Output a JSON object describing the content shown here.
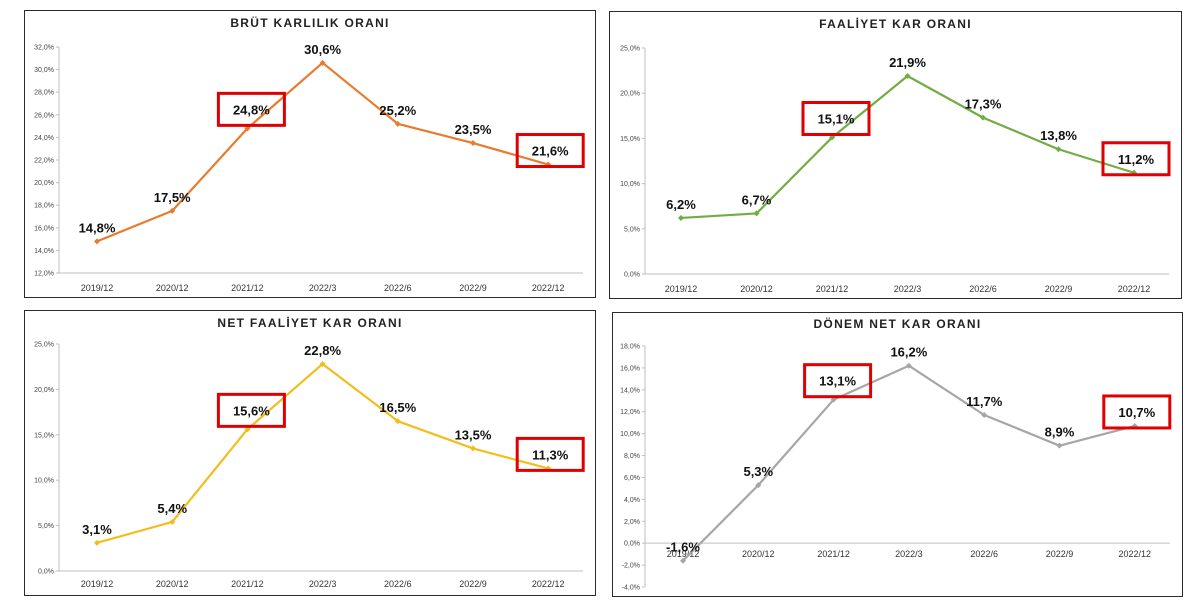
{
  "chart_data": [
    {
      "type": "line",
      "title": "BRÜT KARLILIK ORANI",
      "color": "#E87B2E",
      "categories": [
        "2019/12",
        "2020/12",
        "2021/12",
        "2022/3",
        "2022/6",
        "2022/9",
        "2022/12"
      ],
      "values": [
        14.8,
        17.5,
        24.8,
        30.6,
        25.2,
        23.5,
        21.6
      ],
      "data_labels": [
        "14,8%",
        "17,5%",
        "24,8%",
        "30,6%",
        "25,2%",
        "23,5%",
        "21,6%"
      ],
      "highlighted": [
        2,
        6
      ],
      "ylim": [
        12,
        32
      ],
      "yticks": [
        "12,0%",
        "14,0%",
        "16,0%",
        "18,0%",
        "20,0%",
        "22,0%",
        "24,0%",
        "26,0%",
        "28,0%",
        "30,0%",
        "32,0%"
      ],
      "grid": false,
      "legend": "none"
    },
    {
      "type": "line",
      "title": "FAALİYET KAR ORANI",
      "color": "#72AD43",
      "categories": [
        "2019/12",
        "2020/12",
        "2021/12",
        "2022/3",
        "2022/6",
        "2022/9",
        "2022/12"
      ],
      "values": [
        6.2,
        6.7,
        15.1,
        21.9,
        17.3,
        13.8,
        11.2
      ],
      "data_labels": [
        "6,2%",
        "6,7%",
        "15,1%",
        "21,9%",
        "17,3%",
        "13,8%",
        "11,2%"
      ],
      "highlighted": [
        2,
        6
      ],
      "ylim": [
        0,
        25
      ],
      "yticks": [
        "0,0%",
        "5,0%",
        "10,0%",
        "15,0%",
        "20,0%",
        "25,0%"
      ],
      "grid": false,
      "legend": "none"
    },
    {
      "type": "line",
      "title": "NET FAALİYET KAR ORANI",
      "color": "#F2BE1E",
      "categories": [
        "2019/12",
        "2020/12",
        "2021/12",
        "2022/3",
        "2022/6",
        "2022/9",
        "2022/12"
      ],
      "values": [
        3.1,
        5.4,
        15.6,
        22.8,
        16.5,
        13.5,
        11.3
      ],
      "data_labels": [
        "3,1%",
        "5,4%",
        "15,6%",
        "22,8%",
        "16,5%",
        "13,5%",
        "11,3%"
      ],
      "highlighted": [
        2,
        6
      ],
      "ylim": [
        0,
        25
      ],
      "yticks": [
        "0,0%",
        "5,0%",
        "10,0%",
        "15,0%",
        "20,0%",
        "25,0%"
      ],
      "grid": false,
      "legend": "none"
    },
    {
      "type": "line",
      "title": "DÖNEM NET KAR ORANI",
      "color": "#A6A6A6",
      "categories": [
        "2019/12",
        "2020/12",
        "2021/12",
        "2022/3",
        "2022/6",
        "2022/9",
        "2022/12"
      ],
      "values": [
        -1.6,
        5.3,
        13.1,
        16.2,
        11.7,
        8.9,
        10.7
      ],
      "data_labels": [
        "-1,6%",
        "5,3%",
        "13,1%",
        "16,2%",
        "11,7%",
        "8,9%",
        "10,7%"
      ],
      "highlighted": [
        2,
        6
      ],
      "ylim": [
        -4,
        18
      ],
      "yticks": [
        "-4,0%",
        "-2,0%",
        "0,0%",
        "2,0%",
        "4,0%",
        "6,0%",
        "8,0%",
        "10,0%",
        "12,0%",
        "14,0%",
        "16,0%",
        "18,0%"
      ],
      "grid": false,
      "legend": "none"
    }
  ],
  "highlight_color": "#E00000"
}
